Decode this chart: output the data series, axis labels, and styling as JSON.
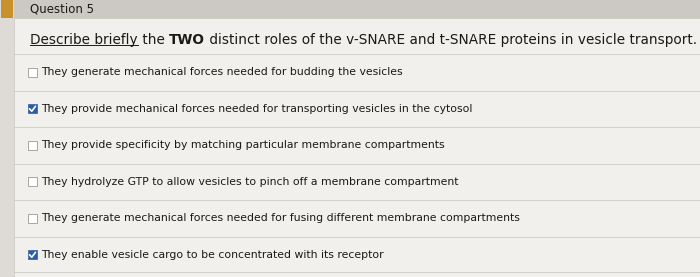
{
  "question_number": "Question 5",
  "options": [
    {
      "text": "They generate mechanical forces needed for budding the vesicles",
      "checked": false
    },
    {
      "text": "They provide mechanical forces needed for transporting vesicles in the cytosol",
      "checked": true
    },
    {
      "text": "They provide specificity by matching particular membrane compartments",
      "checked": false
    },
    {
      "text": "They hydrolyze GTP to allow vesicles to pinch off a membrane compartment",
      "checked": false
    },
    {
      "text": "They generate mechanical forces needed for fusing different membrane compartments",
      "checked": false
    },
    {
      "text": "They enable vesicle cargo to be concentrated with its receptor",
      "checked": true
    }
  ],
  "q_part1": "Describe briefly",
  "q_part2": " the ",
  "q_part3": "TWO",
  "q_part4": " distinct roles of the v-SNARE and t-SNARE proteins in vesicle transport.",
  "bg_color": "#dedad5",
  "panel_color": "#f2f0ed",
  "header_bg": "#ccc9c4",
  "check_color": "#2d5ca6",
  "text_color": "#1a1a1a",
  "divider_color": "#c8c4be",
  "left_stripe_color": "#b8956a",
  "indicator_color": "#c8922a",
  "option_font_size": 7.8,
  "question_font_size": 9.8,
  "header_font_size": 8.5
}
